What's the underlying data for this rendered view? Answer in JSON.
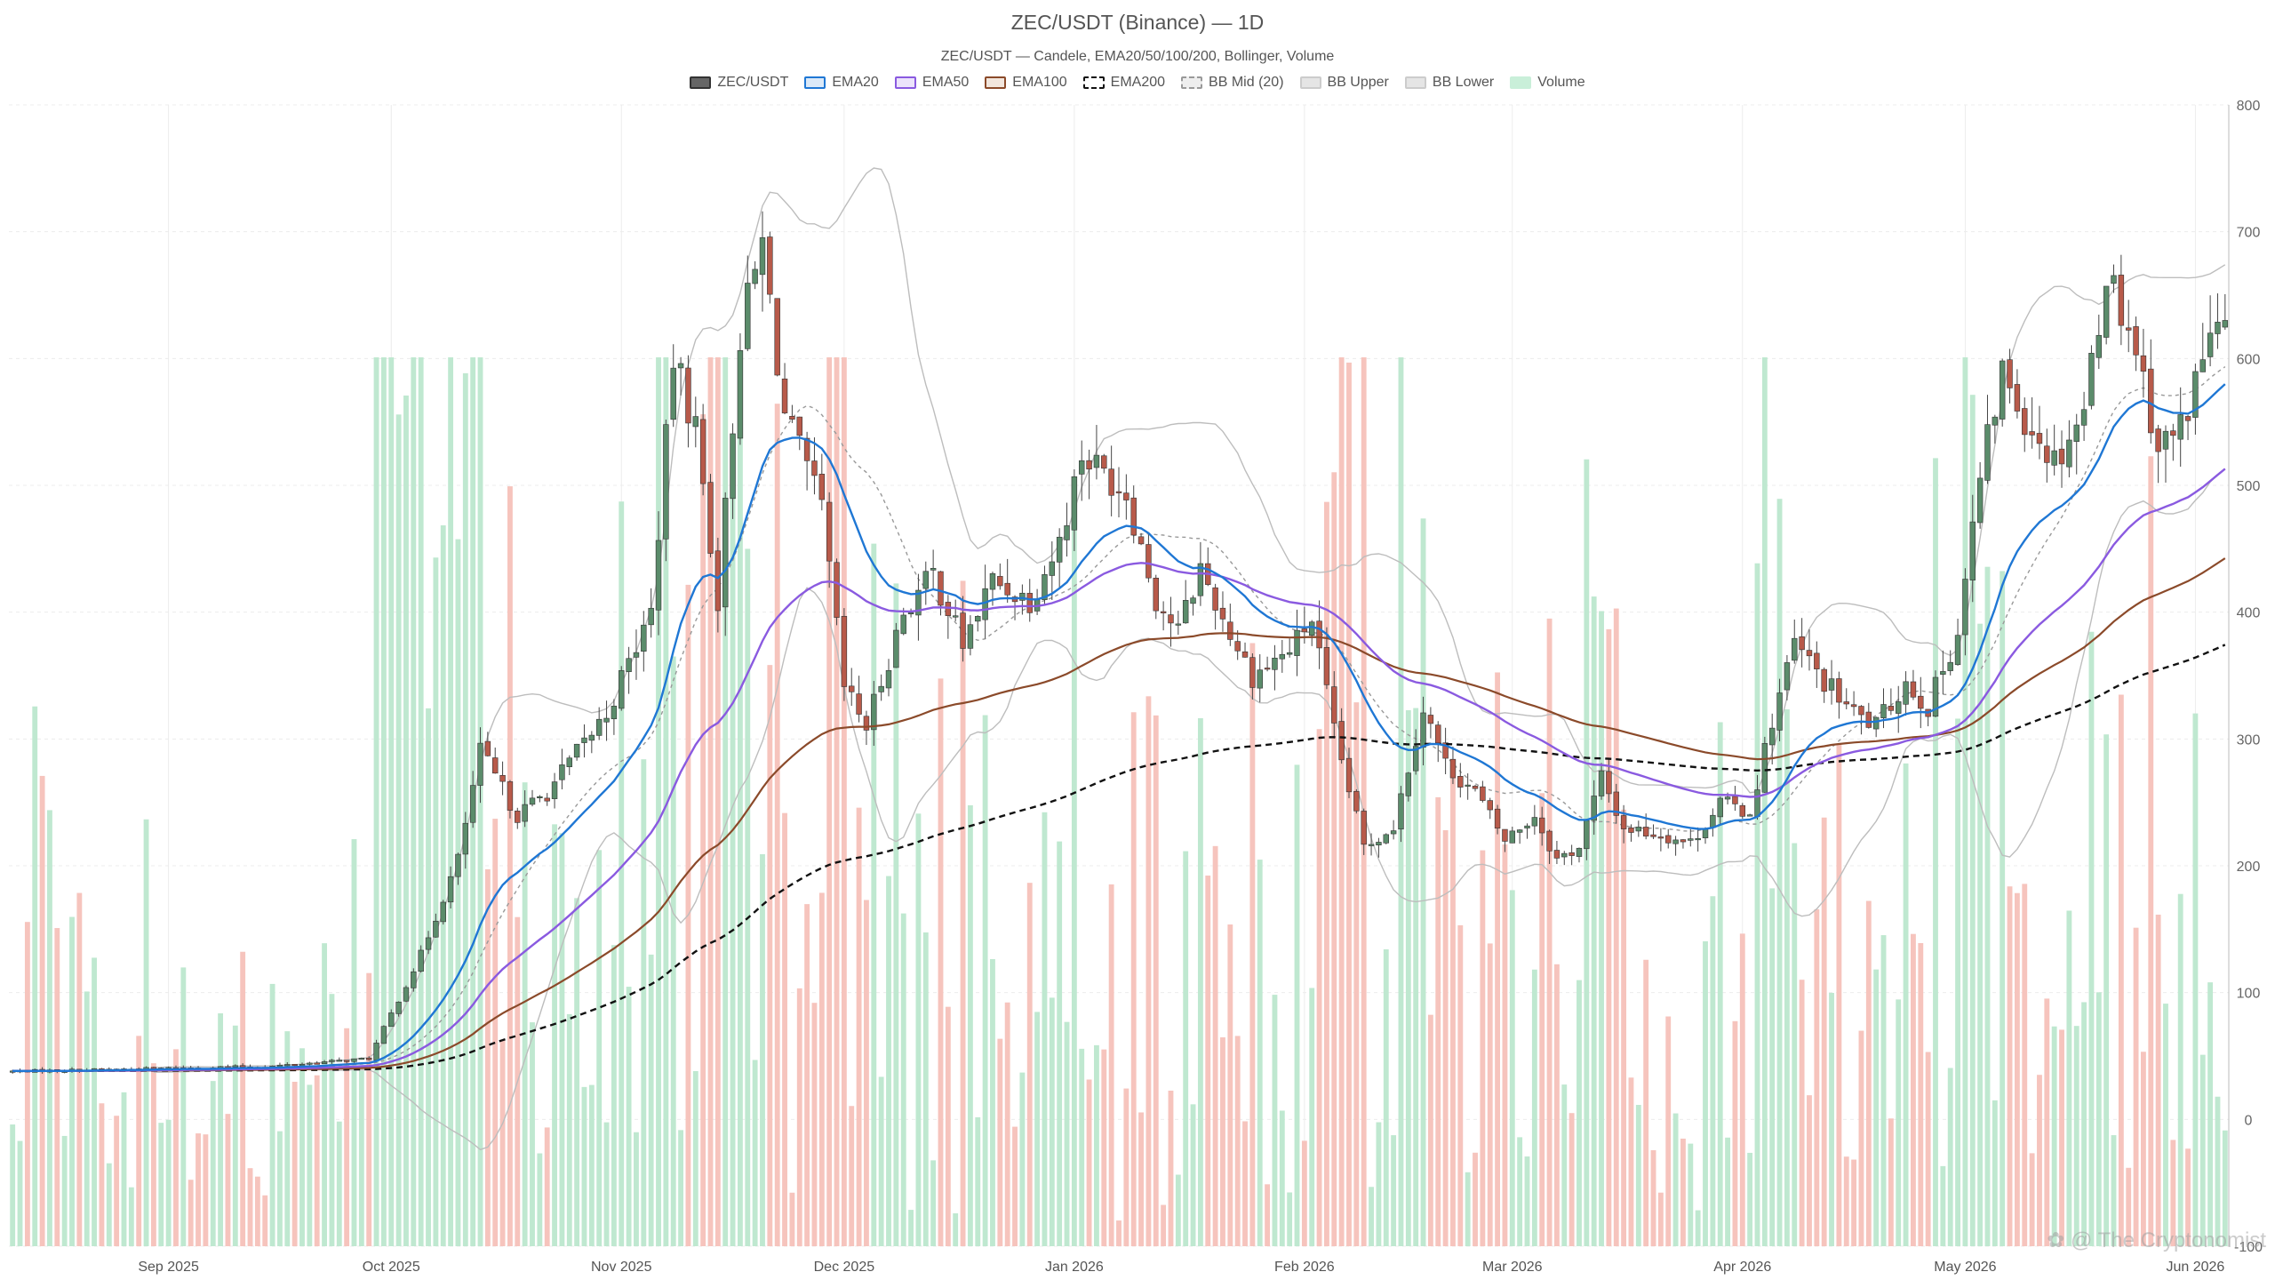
{
  "chart_data": {
    "type": "candlestick",
    "title": "ZEC/USDT (Binance) — 1D",
    "subtitle": "ZEC/USDT — Candele, EMA20/50/100/200, Bollinger, Volume",
    "ylim": [
      -100,
      800
    ],
    "y_ticks": [
      800,
      700,
      600,
      500,
      400,
      300,
      200,
      100,
      0,
      -100
    ],
    "grid": true,
    "legend_position": "top-center",
    "x_tick_labels": [
      {
        "label": "Sep 2025",
        "day": 21
      },
      {
        "label": "Oct 2025",
        "day": 51
      },
      {
        "label": "Nov 2025",
        "day": 82
      },
      {
        "label": "Dec 2025",
        "day": 112
      },
      {
        "label": "Jan 2026",
        "day": 143
      },
      {
        "label": "Feb 2026",
        "day": 174
      },
      {
        "label": "Mar 2026",
        "day": 202
      },
      {
        "label": "Apr 2026",
        "day": 233
      },
      {
        "label": "May 2026",
        "day": 263
      },
      {
        "label": "Jun 2026",
        "day": 294
      }
    ],
    "period": {
      "start": "2025-08-11",
      "end": "2026-06-05",
      "days": 299
    },
    "series": [
      {
        "name": "ZEC/USDT",
        "kind": "candles",
        "up_color": "#5b8c6b",
        "down_color": "#b85a4a",
        "anchors": [
          [
            0,
            38
          ],
          [
            18,
            40
          ],
          [
            35,
            42
          ],
          [
            48,
            48
          ],
          [
            55,
            130
          ],
          [
            60,
            205
          ],
          [
            63,
            290
          ],
          [
            68,
            240
          ],
          [
            72,
            258
          ],
          [
            80,
            320
          ],
          [
            86,
            400
          ],
          [
            89,
            600
          ],
          [
            92,
            545
          ],
          [
            95,
            410
          ],
          [
            98,
            620
          ],
          [
            101,
            690
          ],
          [
            104,
            555
          ],
          [
            109,
            480
          ],
          [
            112,
            340
          ],
          [
            115,
            310
          ],
          [
            120,
            400
          ],
          [
            124,
            430
          ],
          [
            128,
            375
          ],
          [
            132,
            425
          ],
          [
            137,
            410
          ],
          [
            141,
            455
          ],
          [
            144,
            525
          ],
          [
            150,
            495
          ],
          [
            154,
            410
          ],
          [
            157,
            385
          ],
          [
            160,
            435
          ],
          [
            163,
            395
          ],
          [
            167,
            350
          ],
          [
            172,
            370
          ],
          [
            175,
            395
          ],
          [
            178,
            305
          ],
          [
            182,
            215
          ],
          [
            186,
            232
          ],
          [
            190,
            325
          ],
          [
            193,
            280
          ],
          [
            197,
            258
          ],
          [
            201,
            220
          ],
          [
            205,
            240
          ],
          [
            208,
            205
          ],
          [
            211,
            215
          ],
          [
            214,
            270
          ],
          [
            217,
            230
          ],
          [
            222,
            225
          ],
          [
            226,
            218
          ],
          [
            230,
            250
          ],
          [
            234,
            242
          ],
          [
            237,
            315
          ],
          [
            240,
            375
          ],
          [
            244,
            345
          ],
          [
            248,
            320
          ],
          [
            251,
            310
          ],
          [
            255,
            345
          ],
          [
            258,
            325
          ],
          [
            262,
            385
          ],
          [
            265,
            505
          ],
          [
            268,
            590
          ],
          [
            271,
            555
          ],
          [
            275,
            520
          ],
          [
            279,
            560
          ],
          [
            282,
            670
          ],
          [
            286,
            610
          ],
          [
            289,
            530
          ],
          [
            292,
            545
          ],
          [
            296,
            620
          ],
          [
            298,
            620
          ]
        ]
      },
      {
        "name": "EMA20",
        "kind": "line",
        "color": "#1f77d4"
      },
      {
        "name": "EMA50",
        "kind": "line",
        "color": "#8a5ae0"
      },
      {
        "name": "EMA100",
        "kind": "line",
        "color": "#8b4a2a"
      },
      {
        "name": "EMA200",
        "kind": "line",
        "color": "#111111",
        "dash": true
      },
      {
        "name": "BB Mid (20)",
        "kind": "line",
        "color": "#999999",
        "dash": true
      },
      {
        "name": "BB Upper",
        "kind": "line",
        "color": "#bdbdbd"
      },
      {
        "name": "BB Lower",
        "kind": "line",
        "color": "#bdbdbd"
      },
      {
        "name": "Volume",
        "kind": "bars",
        "up_color": "#bfe8d0",
        "down_color": "#f6c4bd"
      }
    ]
  },
  "legend": [
    {
      "label": "ZEC/USDT",
      "fill": "#666666",
      "border": "#333333",
      "dash": false
    },
    {
      "label": "EMA20",
      "fill": "#dbe9f8",
      "border": "#1f77d4",
      "dash": false
    },
    {
      "label": "EMA50",
      "fill": "#ece3fb",
      "border": "#8a5ae0",
      "dash": false
    },
    {
      "label": "EMA100",
      "fill": "#f2e6dd",
      "border": "#8b4a2a",
      "dash": false
    },
    {
      "label": "EMA200",
      "fill": "#ffffff",
      "border": "#111111",
      "dash": true
    },
    {
      "label": "BB Mid (20)",
      "fill": "#eeeeee",
      "border": "#999999",
      "dash": true
    },
    {
      "label": "BB Upper",
      "fill": "#e5e5e5",
      "border": "#cccccc",
      "dash": false
    },
    {
      "label": "BB Lower",
      "fill": "#e5e5e5",
      "border": "#cccccc",
      "dash": false
    },
    {
      "label": "Volume",
      "fill": "#c9efd9",
      "border": "#c9efd9",
      "dash": false
    }
  ],
  "watermark": "@ The Cryptonomist"
}
